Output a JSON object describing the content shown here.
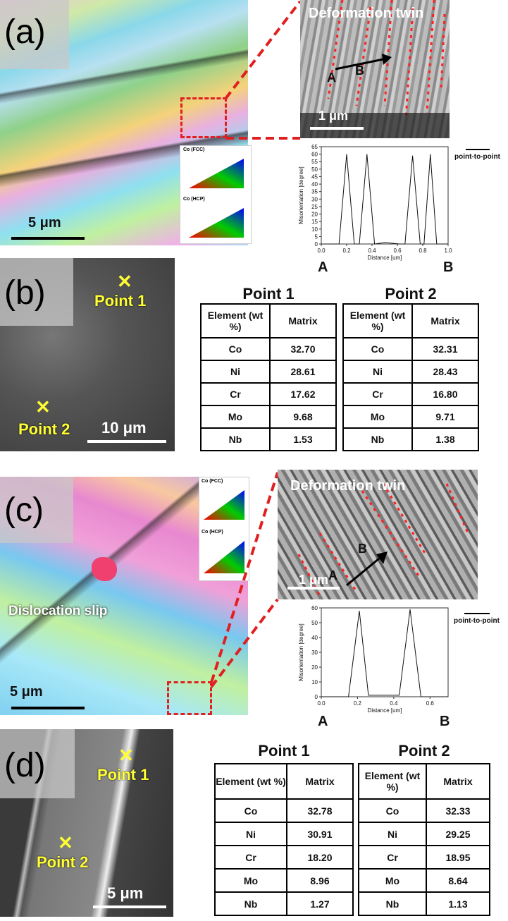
{
  "panel_a": {
    "label": "(a)",
    "scale": "5 μm",
    "inset_title": "Deformation twin",
    "inset_scale": "1 μm",
    "marker_a": "A",
    "marker_b": "B",
    "ipf_fcc": "Co (FCC)",
    "ipf_hcp": "Co (HCP)",
    "legend": "point-to-point",
    "profile_start": "A",
    "profile_end": "B"
  },
  "panel_b": {
    "label": "(b)",
    "point1": "Point 1",
    "point2": "Point 2",
    "scale": "10 μm",
    "table1_title": "Point 1",
    "table2_title": "Point 2",
    "col_element": "Element (wt %)",
    "col_matrix": "Matrix",
    "table1_rows": [
      {
        "el": "Co",
        "val": "32.70"
      },
      {
        "el": "Ni",
        "val": "28.61"
      },
      {
        "el": "Cr",
        "val": "17.62"
      },
      {
        "el": "Mo",
        "val": "9.68"
      },
      {
        "el": "Nb",
        "val": "1.53"
      }
    ],
    "table2_rows": [
      {
        "el": "Co",
        "val": "32.31"
      },
      {
        "el": "Ni",
        "val": "28.43"
      },
      {
        "el": "Cr",
        "val": "16.80"
      },
      {
        "el": "Mo",
        "val": "9.71"
      },
      {
        "el": "Nb",
        "val": "1.38"
      }
    ]
  },
  "panel_c": {
    "label": "(c)",
    "scale": "5 μm",
    "slip_label": "Dislocation slip",
    "inset_title": "Deformation twin",
    "inset_scale": "1 μm",
    "marker_a": "A",
    "marker_b": "B",
    "ipf_fcc": "Co (FCC)",
    "ipf_hcp": "Co (HCP)",
    "legend": "point-to-point",
    "profile_start": "A",
    "profile_end": "B"
  },
  "panel_d": {
    "label": "(d)",
    "point1": "Point 1",
    "point2": "Point 2",
    "scale": "5 μm",
    "table1_title": "Point 1",
    "table2_title": "Point 2",
    "col_element": "Element (wt %)",
    "col_matrix": "Matrix",
    "table1_rows": [
      {
        "el": "Co",
        "val": "32.78"
      },
      {
        "el": "Ni",
        "val": "30.91"
      },
      {
        "el": "Cr",
        "val": "18.20"
      },
      {
        "el": "Mo",
        "val": "8.96"
      },
      {
        "el": "Nb",
        "val": "1.27"
      }
    ],
    "table2_rows": [
      {
        "el": "Co",
        "val": "32.33"
      },
      {
        "el": "Ni",
        "val": "29.25"
      },
      {
        "el": "Cr",
        "val": "18.95"
      },
      {
        "el": "Mo",
        "val": "8.64"
      },
      {
        "el": "Nb",
        "val": "1.13"
      }
    ]
  },
  "chart_data": [
    {
      "type": "line",
      "xlabel": "Distance [um]",
      "ylabel": "Misorientation [degree]",
      "xlim": [
        0.0,
        1.0
      ],
      "ylim": [
        0,
        65
      ],
      "xticks": [
        "0.0",
        "0.2",
        "0.4",
        "0.6",
        "0.8",
        "1.0"
      ],
      "yticks": [
        "0",
        "5",
        "10",
        "15",
        "20",
        "25",
        "30",
        "35",
        "40",
        "45",
        "50",
        "55",
        "60",
        "65"
      ],
      "x": [
        0.0,
        0.1,
        0.14,
        0.2,
        0.26,
        0.3,
        0.36,
        0.42,
        0.5,
        0.62,
        0.66,
        0.72,
        0.78,
        0.81,
        0.86,
        0.91,
        1.0
      ],
      "y": [
        0,
        0,
        0,
        60,
        0,
        0,
        60,
        0,
        1,
        0,
        0,
        59,
        0,
        0,
        60,
        0,
        0
      ]
    },
    {
      "type": "line",
      "xlabel": "Distance [um]",
      "ylabel": "Misorientation [degree]",
      "xlim": [
        0.0,
        0.7
      ],
      "ylim": [
        0,
        60
      ],
      "xticks": [
        "0.0",
        "0.2",
        "0.4",
        "0.6"
      ],
      "yticks": [
        "0",
        "10",
        "20",
        "30",
        "40",
        "50",
        "60"
      ],
      "x": [
        0.0,
        0.15,
        0.21,
        0.26,
        0.4,
        0.43,
        0.49,
        0.55,
        0.7
      ],
      "y": [
        0,
        0,
        58,
        1,
        1,
        1,
        59,
        0,
        0
      ]
    }
  ],
  "colors": {
    "scale_marker": "#ffff33",
    "twin_boundary": "#ff2020",
    "zoom_box": "#e02020"
  }
}
